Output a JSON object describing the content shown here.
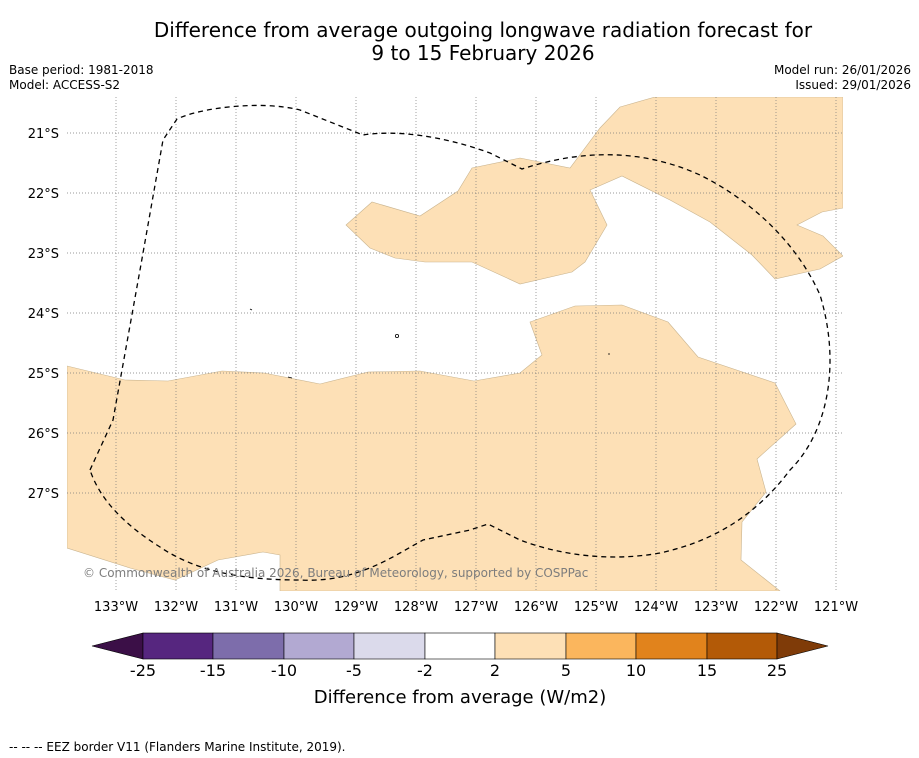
{
  "header": {
    "title_line1": "Difference from average outgoing longwave radiation forecast for",
    "title_line2": "9 to 15 February 2026",
    "base_period": "Base period: 1981-2018",
    "model": "Model: ACCESS-S2",
    "model_run": "Model run: 26/01/2026",
    "issued": "Issued: 29/01/2026"
  },
  "map": {
    "lat_labels": [
      "21°S",
      "22°S",
      "23°S",
      "24°S",
      "25°S",
      "26°S",
      "27°S"
    ],
    "lon_labels": [
      "133°W",
      "132°W",
      "131°W",
      "130°W",
      "129°W",
      "128°W",
      "127°W",
      "126°W",
      "125°W",
      "124°W",
      "123°W",
      "122°W",
      "121°W"
    ],
    "copyright": "© Commonwealth of Australia 2026, Bureau of Meteorology, supported by COSPPac",
    "land_color": "#fde0b6",
    "background_color": "#ffffff"
  },
  "colorbar": {
    "label": "Difference from average (W/m2)",
    "ticks": [
      "-25",
      "-15",
      "-10",
      "-5",
      "-2",
      "2",
      "5",
      "10",
      "15",
      "25"
    ],
    "colors": [
      "#3b0f47",
      "#56267f",
      "#7d6dab",
      "#b2a9d2",
      "#dbdaeb",
      "#ffffff",
      "#fde0b6",
      "#fbb65d",
      "#e1831c",
      "#b35a07",
      "#7f3b08"
    ]
  },
  "footnote": "--  --  -- EEZ border V11 (Flanders Marine Institute, 2019)."
}
